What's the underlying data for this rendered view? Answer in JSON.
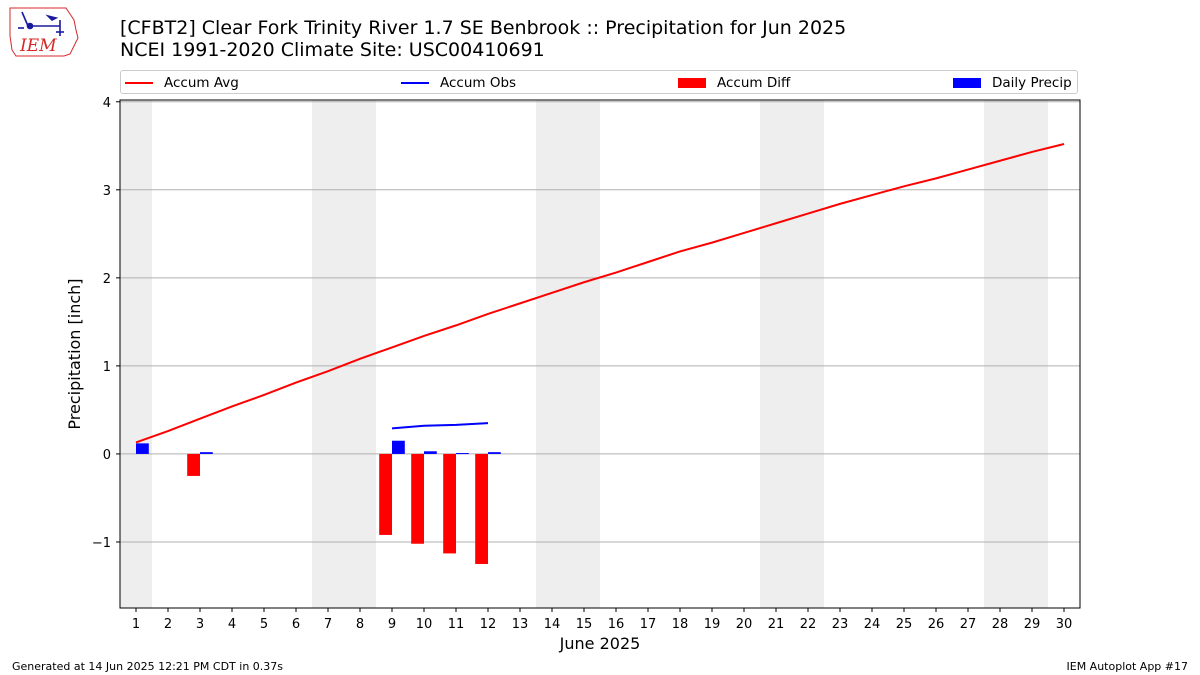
{
  "logo": {
    "text": "IEM",
    "icon": "iowa-state-weather-logo",
    "color": "#d62828"
  },
  "title": {
    "line1": "[CFBT2] Clear Fork Trinity River 1.7 SE Benbrook :: Precipitation for Jun 2025",
    "line2": "NCEI 1991-2020 Climate Site: USC00410691"
  },
  "legend": {
    "placement": "top, above plot, single row",
    "items": [
      {
        "label": "Accum Avg",
        "kind": "line",
        "color": "#ff0000"
      },
      {
        "label": "Accum Obs",
        "kind": "line",
        "color": "#0000ff"
      },
      {
        "label": "Accum Diff",
        "kind": "bar",
        "color": "#ff0000"
      },
      {
        "label": "Daily Precip",
        "kind": "bar",
        "color": "#0000ff"
      }
    ]
  },
  "footer": {
    "left": "Generated at 14 Jun 2025 12:21 PM CDT in 0.37s",
    "right": "IEM Autoplot App #17"
  },
  "chart_data": {
    "type": "bar",
    "xlabel": "June 2025",
    "ylabel": "Precipitation [inch]",
    "xlim": [
      0.5,
      30.5
    ],
    "ylim": [
      -1.75,
      4.02
    ],
    "yticks": [
      -1,
      0,
      1,
      2,
      3,
      4
    ],
    "ytick_labels": [
      "−1",
      "0",
      "1",
      "2",
      "3",
      "4"
    ],
    "xticks": [
      1,
      2,
      3,
      4,
      5,
      6,
      7,
      8,
      9,
      10,
      11,
      12,
      13,
      14,
      15,
      16,
      17,
      18,
      19,
      20,
      21,
      22,
      23,
      24,
      25,
      26,
      27,
      28,
      29,
      30
    ],
    "xtick_labels": [
      "1",
      "2",
      "3",
      "4",
      "5",
      "6",
      "7",
      "8",
      "9",
      "10",
      "11",
      "12",
      "13",
      "14",
      "15",
      "16",
      "17",
      "18",
      "19",
      "20",
      "21",
      "22",
      "23",
      "24",
      "25",
      "26",
      "27",
      "28",
      "29",
      "30"
    ],
    "grid": "horizontal",
    "weekend_shading": [
      [
        0.5,
        1.5
      ],
      [
        6.5,
        8.5
      ],
      [
        13.5,
        15.5
      ],
      [
        20.5,
        22.5
      ],
      [
        27.5,
        29.5
      ]
    ],
    "shade_color": "#eeeeee",
    "series": [
      {
        "name": "Accum Avg",
        "kind": "line",
        "color": "#ff0000",
        "x": [
          1,
          2,
          3,
          4,
          5,
          6,
          7,
          8,
          9,
          10,
          11,
          12,
          13,
          14,
          15,
          16,
          17,
          18,
          19,
          20,
          21,
          22,
          23,
          24,
          25,
          26,
          27,
          28,
          29,
          30
        ],
        "values": [
          0.13,
          0.26,
          0.4,
          0.54,
          0.67,
          0.81,
          0.94,
          1.08,
          1.21,
          1.34,
          1.46,
          1.59,
          1.71,
          1.83,
          1.95,
          2.06,
          2.18,
          2.3,
          2.4,
          2.51,
          2.62,
          2.73,
          2.84,
          2.94,
          3.04,
          3.13,
          3.23,
          3.33,
          3.43,
          3.52
        ]
      },
      {
        "name": "Accum Obs",
        "kind": "line",
        "color": "#0000ff",
        "x": [
          9,
          10,
          11,
          12
        ],
        "values": [
          0.29,
          0.32,
          0.33,
          0.35
        ]
      },
      {
        "name": "Accum Diff",
        "kind": "bar",
        "color": "#ff0000",
        "x": [
          3,
          9,
          10,
          11,
          12
        ],
        "values": [
          -0.25,
          -0.92,
          -1.02,
          -1.13,
          -1.25
        ]
      },
      {
        "name": "Daily Precip",
        "kind": "bar",
        "color": "#0000ff",
        "x": [
          1,
          3,
          9,
          10,
          11,
          12
        ],
        "values": [
          0.12,
          0.02,
          0.15,
          0.03,
          0.01,
          0.02
        ]
      }
    ]
  }
}
